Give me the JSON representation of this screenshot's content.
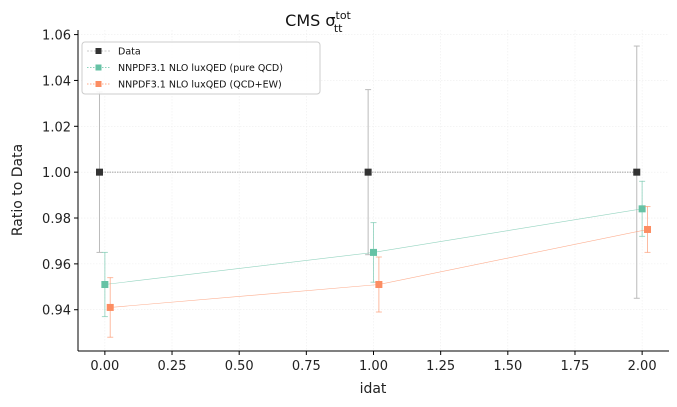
{
  "chart_data": {
    "type": "line",
    "title": "CMS σ",
    "title_sup": "tot",
    "title_sub": "tt",
    "xlabel": "idat",
    "ylabel": "Ratio to Data",
    "xlim": [
      -0.1,
      2.1
    ],
    "ylim": [
      0.922,
      1.062
    ],
    "x_ticks": [
      0.0,
      0.25,
      0.5,
      0.75,
      1.0,
      1.25,
      1.5,
      1.75,
      2.0
    ],
    "x_tick_labels": [
      "0.00",
      "0.25",
      "0.50",
      "0.75",
      "1.00",
      "1.25",
      "1.50",
      "1.75",
      "2.00"
    ],
    "y_ticks": [
      0.94,
      0.96,
      0.98,
      1.0,
      1.02,
      1.04,
      1.06
    ],
    "y_tick_labels": [
      "0.94",
      "0.96",
      "0.98",
      "1.00",
      "1.02",
      "1.04",
      "1.06"
    ],
    "grid": true,
    "legend_position": "top-left",
    "series": [
      {
        "name": "Data",
        "color": "#333333",
        "x": [
          -0.02,
          0.98,
          1.98
        ],
        "y": [
          1.0,
          1.0,
          1.0
        ],
        "err": [
          0.035,
          0.036,
          0.055
        ]
      },
      {
        "name": "NNPDF3.1 NLO luxQED (pure QCD)",
        "color": "#66c2a5",
        "x": [
          0.0,
          1.0,
          2.0
        ],
        "y": [
          0.951,
          0.965,
          0.984
        ],
        "err": [
          0.014,
          0.013,
          0.012
        ]
      },
      {
        "name": "NNPDF3.1 NLO luxQED (QCD+EW)",
        "color": "#fc8d62",
        "x": [
          0.02,
          1.02,
          2.02
        ],
        "y": [
          0.941,
          0.951,
          0.975
        ],
        "err": [
          0.013,
          0.012,
          0.01
        ]
      }
    ]
  }
}
